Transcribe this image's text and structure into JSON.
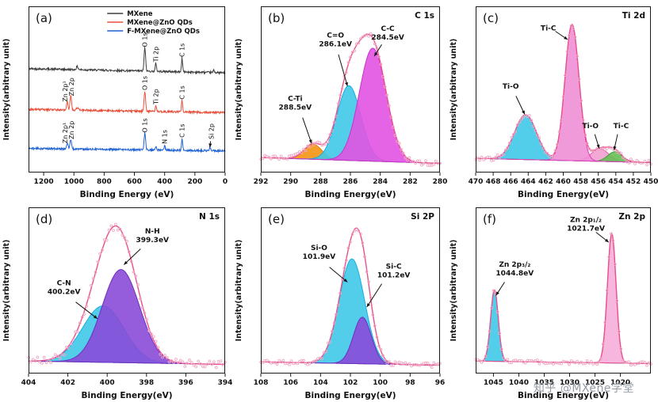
{
  "watermark": {
    "text": "知乎 @MXene学堂"
  },
  "chart_data": {
    "type": "line",
    "description": "XPS spectra figure with six panels (a)-(f)",
    "panels": [
      {
        "id": "a",
        "kind": "survey",
        "panel_label": "(a)",
        "title": "",
        "xlabel": "Binding Energy (eV)",
        "ylabel": "Intensity(arbitrary unit)",
        "x_range": [
          1300,
          0
        ],
        "x_ticks": [
          1200,
          1000,
          800,
          600,
          400,
          200,
          0
        ],
        "legend": [
          {
            "label": "MXene",
            "color": "#3d3d3d"
          },
          {
            "label": "MXene@ZnO QDs",
            "color": "#e8503c"
          },
          {
            "label": "F-MXene@ZnO QDs",
            "color": "#1f62d4"
          }
        ],
        "series": [
          {
            "name": "MXene",
            "color": "#3d3d3d",
            "base": 0.6,
            "tilt": 0.025,
            "peaks": [
              [
                531,
                0.14,
                5
              ],
              [
                458,
                0.05,
                4
              ],
              [
                285,
                0.08,
                4
              ],
              [
                978,
                0.018,
                6
              ],
              [
                75,
                0.015,
                4
              ]
            ]
          },
          {
            "name": "MXene@ZnO QDs",
            "color": "#e8503c",
            "base": 0.36,
            "tilt": 0.02,
            "peaks": [
              [
                1044,
                0.05,
                5
              ],
              [
                1021,
                0.085,
                5
              ],
              [
                531,
                0.12,
                5
              ],
              [
                458,
                0.04,
                4
              ],
              [
                285,
                0.07,
                4
              ],
              [
                978,
                0.014,
                6
              ]
            ]
          },
          {
            "name": "F-MXene@ZnO QDs",
            "color": "#1f62d4",
            "base": 0.13,
            "tilt": 0.015,
            "peaks": [
              [
                1044,
                0.035,
                5
              ],
              [
                1021,
                0.055,
                5
              ],
              [
                531,
                0.1,
                5
              ],
              [
                458,
                0.02,
                4
              ],
              [
                400,
                0.027,
                4
              ],
              [
                285,
                0.065,
                4
              ],
              [
                100,
                0.022,
                4
              ]
            ]
          }
        ],
        "labels": [
          {
            "text": "O 1s",
            "x": 531,
            "y": 0.755
          },
          {
            "text": "Ti 2p",
            "x": 458,
            "y": 0.665
          },
          {
            "text": "C 1s",
            "x": 285,
            "y": 0.695
          },
          {
            "text": "Zn 2p¹",
            "x": 1060,
            "y": 0.425
          },
          {
            "text": "Zn 2p",
            "x": 1016,
            "y": 0.46
          },
          {
            "text": "O 1s",
            "x": 531,
            "y": 0.495
          },
          {
            "text": "Ti 2p",
            "x": 458,
            "y": 0.41
          },
          {
            "text": "C 1s",
            "x": 285,
            "y": 0.44
          },
          {
            "text": "Zn 2p¹",
            "x": 1060,
            "y": 0.175
          },
          {
            "text": "Zn 2p",
            "x": 1016,
            "y": 0.2
          },
          {
            "text": "O 1s",
            "x": 531,
            "y": 0.24
          },
          {
            "text": "N 1s",
            "x": 400,
            "y": 0.172
          },
          {
            "text": "C 1s",
            "x": 285,
            "y": 0.21
          },
          {
            "text": "Si 2p",
            "x": 93,
            "y": 0.2
          }
        ],
        "arrows": [
          {
            "x1": 97,
            "y1": 0.188,
            "x2": 100,
            "y2": 0.152
          }
        ]
      },
      {
        "id": "b",
        "kind": "fit",
        "panel_label": "(b)",
        "title": "C 1s",
        "xlabel": "Binding Energy(eV)",
        "ylabel": "Intensity(arbitrary unit)",
        "x_range": [
          292,
          280
        ],
        "x_ticks": [
          292,
          290,
          288,
          286,
          284,
          282,
          280
        ],
        "baseline": {
          "left": 0.09,
          "right": 0.055
        },
        "envelope_color": "#e8508e",
        "scatter_color": "#f0a8c4",
        "noise": 0.03,
        "components": [
          {
            "name": "C-Ti",
            "center": 288.5,
            "amp": 0.09,
            "width": 0.6,
            "fill": "#f59313",
            "stroke": "#e07e0a"
          },
          {
            "name": "C=O",
            "center": 286.1,
            "amp": 0.45,
            "width": 0.8,
            "fill": "#3fc9e8",
            "stroke": "#18aee0"
          },
          {
            "name": "C-C",
            "center": 284.5,
            "amp": 0.68,
            "width": 0.9,
            "fill": "#e253e2",
            "stroke": "#c930c9"
          }
        ],
        "annotations": [
          {
            "lines": [
              "C-Ti",
              "288.5eV"
            ],
            "x": 289.7,
            "y": 0.42,
            "arrow": {
              "x1": 289.2,
              "y1": 0.33,
              "x2": 288.6,
              "y2": 0.175
            }
          },
          {
            "lines": [
              "C=O",
              "286.1eV"
            ],
            "x": 287.0,
            "y": 0.8,
            "arrow": {
              "x1": 286.8,
              "y1": 0.71,
              "x2": 286.2,
              "y2": 0.52
            }
          },
          {
            "lines": [
              "C-C",
              "284.5eV"
            ],
            "x": 283.5,
            "y": 0.84,
            "arrow": {
              "x1": 283.9,
              "y1": 0.77,
              "x2": 284.4,
              "y2": 0.7
            }
          }
        ]
      },
      {
        "id": "c",
        "kind": "fit",
        "panel_label": "(c)",
        "title": "Ti 2d",
        "xlabel": "Binding Energy(eV)",
        "ylabel": "Intensity(arbitrary unit)",
        "x_range": [
          470,
          450
        ],
        "x_ticks": [
          470,
          468,
          466,
          464,
          462,
          460,
          458,
          456,
          454,
          452,
          450
        ],
        "baseline": {
          "left": 0.085,
          "right": 0.06
        },
        "envelope_color": "#e8508e",
        "scatter_color": "#f0a8c4",
        "noise": 0.028,
        "components": [
          {
            "name": "Ti-O",
            "center": 464.3,
            "amp": 0.27,
            "width": 1.25,
            "fill": "#3fc9e8",
            "stroke": "#18aee0"
          },
          {
            "name": "Ti-O2",
            "center": 455.8,
            "amp": 0.075,
            "width": 1.0,
            "fill": "#f2a0d0",
            "stroke": "#e060b0"
          },
          {
            "name": "Ti-C2",
            "center": 454.1,
            "amp": 0.06,
            "width": 0.8,
            "fill": "#66bf55",
            "stroke": "#3f9f35"
          },
          {
            "name": "Ti-C",
            "center": 459.0,
            "amp": 0.82,
            "width": 0.8,
            "fill": "#ef8fd6",
            "stroke": "#e23bbf"
          }
        ],
        "annotations": [
          {
            "lines": [
              "Ti-O"
            ],
            "x": 466.0,
            "y": 0.52,
            "arrow": {
              "x1": 465.4,
              "y1": 0.46,
              "x2": 464.4,
              "y2": 0.35
            }
          },
          {
            "lines": [
              "Ti-C"
            ],
            "x": 461.7,
            "y": 0.87,
            "arrow": {
              "x1": 460.9,
              "y1": 0.85,
              "x2": 459.5,
              "y2": 0.8
            }
          },
          {
            "lines": [
              "Ti-O"
            ],
            "x": 456.9,
            "y": 0.28,
            "arrow": {
              "x1": 456.4,
              "y1": 0.23,
              "x2": 455.9,
              "y2": 0.145
            }
          },
          {
            "lines": [
              "Ti-C"
            ],
            "x": 453.4,
            "y": 0.28,
            "arrow": {
              "x1": 453.8,
              "y1": 0.23,
              "x2": 454.2,
              "y2": 0.135
            }
          }
        ]
      },
      {
        "id": "d",
        "kind": "fit",
        "panel_label": "(d)",
        "title": "N 1s",
        "xlabel": "Binding Energy(eV)",
        "ylabel": "Intensity(arbitrary unit)",
        "x_range": [
          404,
          394
        ],
        "x_ticks": [
          404,
          402,
          400,
          398,
          396,
          394
        ],
        "baseline": {
          "left": 0.075,
          "right": 0.055
        },
        "envelope_color": "#e8508e",
        "scatter_color": "#f0a8c4",
        "noise": 0.045,
        "components": [
          {
            "name": "C-N",
            "center": 400.2,
            "amp": 0.34,
            "width": 1.05,
            "fill": "#3fc9e8",
            "stroke": "#18aee0"
          },
          {
            "name": "N-H",
            "center": 399.3,
            "amp": 0.56,
            "width": 0.95,
            "fill": "#8a4bd8",
            "stroke": "#6d2fc0"
          }
        ],
        "annotations": [
          {
            "lines": [
              "C-N",
              "400.2eV"
            ],
            "x": 402.2,
            "y": 0.52,
            "arrow": {
              "x1": 401.6,
              "y1": 0.43,
              "x2": 400.5,
              "y2": 0.33
            }
          },
          {
            "lines": [
              "N-H",
              "399.3eV"
            ],
            "x": 397.7,
            "y": 0.83,
            "arrow": {
              "x1": 398.3,
              "y1": 0.75,
              "x2": 399.15,
              "y2": 0.655
            }
          }
        ]
      },
      {
        "id": "e",
        "kind": "fit",
        "panel_label": "(e)",
        "title": "Si 2P",
        "xlabel": "Binding Energy(eV)",
        "ylabel": "Intensity(arbitrary unit)",
        "x_range": [
          108,
          96
        ],
        "x_ticks": [
          108,
          106,
          104,
          102,
          100,
          98,
          96
        ],
        "baseline": {
          "left": 0.07,
          "right": 0.05
        },
        "envelope_color": "#e8508e",
        "scatter_color": "#f0a8c4",
        "noise": 0.03,
        "components": [
          {
            "name": "Si-O",
            "center": 101.9,
            "amp": 0.63,
            "width": 0.85,
            "fill": "#3fc9e8",
            "stroke": "#18aee0"
          },
          {
            "name": "Si-C",
            "center": 101.2,
            "amp": 0.28,
            "width": 0.6,
            "fill": "#8a4bd8",
            "stroke": "#6d2fc0"
          }
        ],
        "annotations": [
          {
            "lines": [
              "Si-O",
              "101.9eV"
            ],
            "x": 104.1,
            "y": 0.73,
            "arrow": {
              "x1": 103.4,
              "y1": 0.64,
              "x2": 102.2,
              "y2": 0.55
            }
          },
          {
            "lines": [
              "Si-C",
              "101.2eV"
            ],
            "x": 99.1,
            "y": 0.62,
            "arrow": {
              "x1": 99.9,
              "y1": 0.54,
              "x2": 100.9,
              "y2": 0.4
            }
          }
        ]
      },
      {
        "id": "f",
        "kind": "fit",
        "panel_label": "(f)",
        "title": "Zn 2p",
        "xlabel": "Binding Energy(eV)",
        "ylabel": "Intensity(arbitrary unit)",
        "x_range": [
          1048.5,
          1014
        ],
        "x_ticks": [
          1045,
          1040,
          1035,
          1030,
          1025,
          1020
        ],
        "baseline": {
          "left": 0.075,
          "right": 0.06
        },
        "envelope_color": "#e8508e",
        "scatter_color": "#f0a8c4",
        "noise": 0.025,
        "components": [
          {
            "name": "Zn 2p3/2",
            "center": 1044.8,
            "amp": 0.43,
            "width": 0.75,
            "fill": "#3fc9e8",
            "stroke": "#18aee0"
          },
          {
            "name": "Zn 2p1/2",
            "center": 1021.7,
            "amp": 0.78,
            "width": 0.85,
            "fill": "#f6aeda",
            "stroke": "#e8488b"
          }
        ],
        "annotations": [
          {
            "lines": [
              "Zn 2p₃/₂",
              "1044.8eV"
            ],
            "x": 1040.8,
            "y": 0.63,
            "arrow": {
              "x1": 1042.8,
              "y1": 0.55,
              "x2": 1044.5,
              "y2": 0.47
            }
          },
          {
            "lines": [
              "Zn 2p₁/₂",
              "1021.7eV"
            ],
            "x": 1026.8,
            "y": 0.9,
            "arrow": {
              "x1": 1024.8,
              "y1": 0.85,
              "x2": 1022.3,
              "y2": 0.79
            }
          }
        ]
      }
    ]
  }
}
